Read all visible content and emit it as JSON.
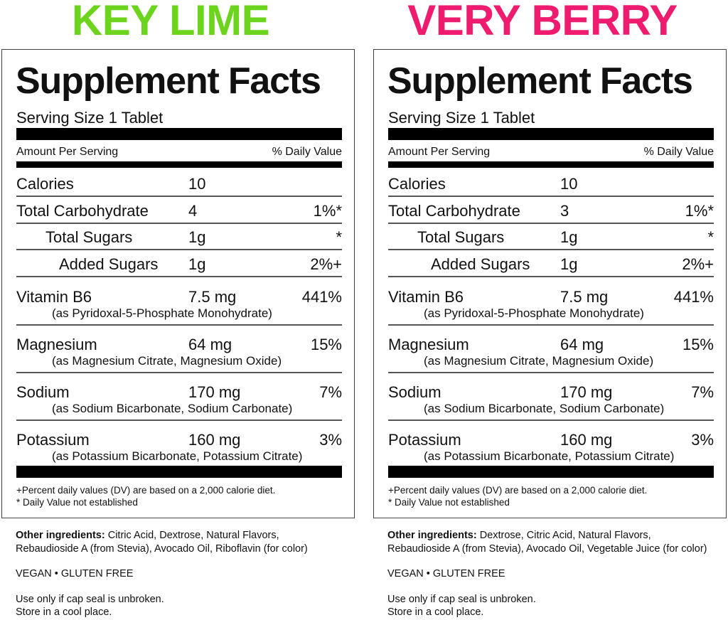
{
  "panels": [
    {
      "flavor": "KEY LIME",
      "flavor_color": "#6cd41c",
      "title": "Supplement Facts",
      "serving_size": "Serving Size 1 Tablet",
      "amount_per_serving": "Amount Per Serving",
      "daily_value_header": "% Daily Value",
      "rows": [
        {
          "label": "Calories",
          "amount": "10",
          "dv": ""
        },
        {
          "label": "Total Carbohydrate",
          "amount": "4",
          "dv": "1%*"
        },
        {
          "label": "Total Sugars",
          "amount": "1g",
          "dv": "*"
        },
        {
          "label": "Added Sugars",
          "amount": "1g",
          "dv": "2%+"
        },
        {
          "label": "Vitamin B6",
          "amount": "7.5 mg",
          "dv": "441%",
          "source": "(as Pyridoxal-5-Phosphate Monohydrate)"
        },
        {
          "label": "Magnesium",
          "amount": "64 mg",
          "dv": "15%",
          "source": "(as Magnesium Citrate, Magnesium Oxide)"
        },
        {
          "label": "Sodium",
          "amount": "170 mg",
          "dv": "7%",
          "source": "(as Sodium Bicarbonate, Sodium Carbonate)"
        },
        {
          "label": "Potassium",
          "amount": "160 mg",
          "dv": "3%",
          "source": "(as Potassium Bicarbonate, Potassium Citrate)"
        }
      ],
      "footnote1": "+Percent daily values (DV) are based on a 2,000 calorie diet.",
      "footnote2": "* Daily Value not established",
      "other_ingredients_label": "Other ingredients:",
      "other_ingredients_line1": " Citric Acid, Dextrose, Natural Flavors,",
      "other_ingredients_line2": "Rebaudioside A (from Stevia), Avocado Oil, Riboflavin (for color)",
      "claims": "VEGAN • GLUTEN FREE",
      "storage_line1": "Use only if cap seal is unbroken.",
      "storage_line2": "Store in a cool place."
    },
    {
      "flavor": "VERY BERRY",
      "flavor_color": "#ee1b6e",
      "title": "Supplement Facts",
      "serving_size": "Serving Size 1 Tablet",
      "amount_per_serving": "Amount Per Serving",
      "daily_value_header": "% Daily Value",
      "rows": [
        {
          "label": "Calories",
          "amount": "10",
          "dv": ""
        },
        {
          "label": "Total Carbohydrate",
          "amount": "3",
          "dv": "1%*"
        },
        {
          "label": "Total Sugars",
          "amount": "1g",
          "dv": "*"
        },
        {
          "label": "Added Sugars",
          "amount": "1g",
          "dv": "2%+"
        },
        {
          "label": "Vitamin B6",
          "amount": "7.5 mg",
          "dv": "441%",
          "source": "(as Pyridoxal-5-Phosphate Monohydrate)"
        },
        {
          "label": "Magnesium",
          "amount": "64 mg",
          "dv": "15%",
          "source": "(as Magnesium Citrate, Magnesium Oxide)"
        },
        {
          "label": "Sodium",
          "amount": "170 mg",
          "dv": "7%",
          "source": "(as Sodium Bicarbonate, Sodium Carbonate)"
        },
        {
          "label": "Potassium",
          "amount": "160 mg",
          "dv": "3%",
          "source": "(as Potassium Bicarbonate, Potassium Citrate)"
        }
      ],
      "footnote1": "+Percent daily values (DV) are based on a 2,000 calorie diet.",
      "footnote2": "* Daily Value not established",
      "other_ingredients_label": "Other ingredients:",
      "other_ingredients_line1": " Dextrose, Citric Acid, Natural Flavors,",
      "other_ingredients_line2": "Rebaudioside A (from Stevia), Avocado Oil, Vegetable Juice (for color)",
      "claims": "VEGAN • GLUTEN FREE",
      "storage_line1": "Use only if cap seal is unbroken.",
      "storage_line2": "Store in a cool place."
    }
  ]
}
